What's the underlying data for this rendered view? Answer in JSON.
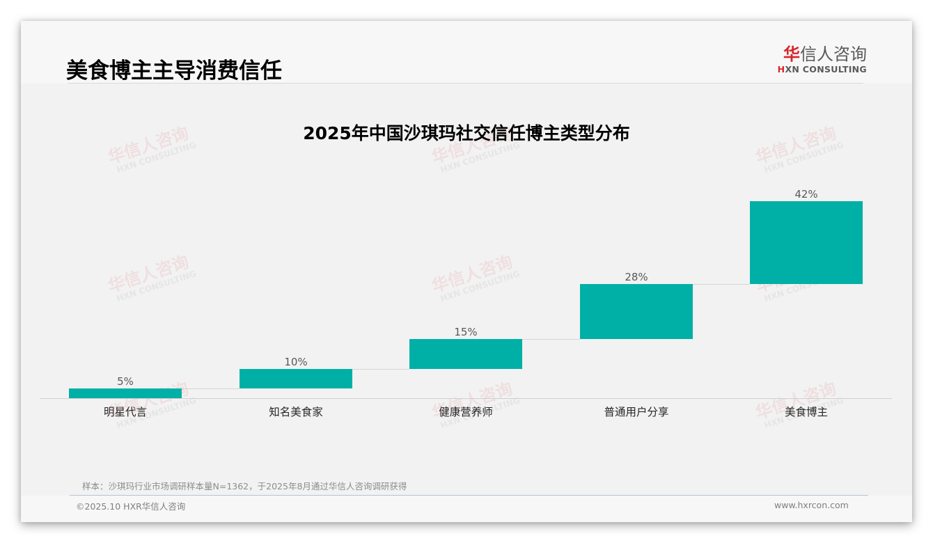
{
  "header": {
    "page_title": "美食博主主导消费信任",
    "logo": {
      "cn_mark": "华",
      "cn_rest": "信人咨询",
      "en_mark": "H",
      "en_rest": "XN CONSULTING"
    }
  },
  "watermark": {
    "cn": "华信人咨询",
    "en": "HXN CONSULTING"
  },
  "chart_data": {
    "type": "bar",
    "subtype": "waterfall",
    "title": "2025年中国沙琪玛社交信任博主类型分布",
    "categories": [
      "明星代言",
      "知名美食家",
      "健康营养师",
      "普通用户分享",
      "美食博主"
    ],
    "values": [
      5,
      10,
      15,
      28,
      42
    ],
    "value_labels": [
      "5%",
      "10%",
      "15%",
      "28%",
      "42%"
    ],
    "cumulative_start": [
      0,
      5,
      15,
      30,
      58
    ],
    "cumulative_end": [
      5,
      15,
      30,
      58,
      100
    ],
    "unit": "%",
    "xlabel": "",
    "ylabel": "",
    "ylim": [
      0,
      100
    ],
    "grid": false,
    "legend": "none",
    "bar_color": "#00b0a6"
  },
  "footer": {
    "source_note": "样本：沙琪玛行业市场调研样本量N=1362，于2025年8月通过华信人咨询调研获得",
    "copyright": "©2025.10 HXR华信人咨询",
    "website": "www.hxrcon.com"
  }
}
